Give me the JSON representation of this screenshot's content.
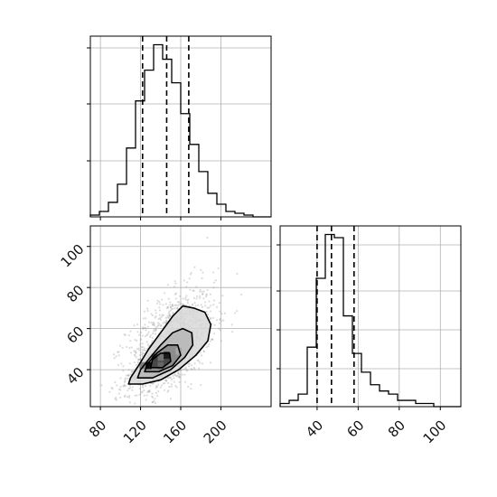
{
  "chart_data": {
    "type": "corner",
    "parameters": [
      {
        "axis_range": [
          70,
          250
        ],
        "tick_values": [
          80,
          120,
          160,
          200
        ],
        "tick_labels": [
          "80",
          "120",
          "160",
          "200"
        ],
        "quantiles": [
          122,
          146,
          168
        ],
        "histogram": {
          "bin_edges": [
            70,
            79,
            88,
            97,
            106,
            115,
            124,
            133,
            142,
            151,
            160,
            169,
            178,
            187,
            196,
            205,
            214,
            223,
            232,
            241,
            250
          ],
          "counts": [
            1,
            3,
            8,
            18,
            38,
            64,
            81,
            95,
            87,
            74,
            57,
            40,
            25,
            13,
            7,
            3,
            2,
            1,
            0,
            0
          ]
        }
      },
      {
        "axis_range": [
          22,
          110
        ],
        "tick_values": [
          40,
          60,
          80,
          100
        ],
        "tick_labels": [
          "40",
          "60",
          "80",
          "100"
        ],
        "quantiles": [
          40,
          47,
          58
        ],
        "histogram": {
          "bin_edges": [
            22,
            26.4,
            30.8,
            35.2,
            39.6,
            44,
            48.4,
            52.8,
            57.2,
            61.6,
            66,
            70.4,
            74.8,
            79.2,
            83.6,
            88,
            92.4,
            96.8,
            101.2,
            105.6,
            110
          ],
          "counts": [
            1,
            2,
            4,
            19,
            41,
            55,
            54,
            29,
            17,
            11,
            7,
            5,
            4,
            2,
            2,
            1,
            1,
            0,
            0,
            0
          ]
        }
      }
    ],
    "joint": {
      "x_range": [
        70,
        250
      ],
      "y_range": [
        22,
        110
      ],
      "x_ticks": [
        "80",
        "120",
        "160",
        "200"
      ],
      "y_ticks": [
        "40",
        "60",
        "80",
        "100"
      ],
      "contour_levels": [
        [
          [
            108,
            33
          ],
          [
            122,
            33
          ],
          [
            140,
            35
          ],
          [
            158,
            40
          ],
          [
            175,
            47
          ],
          [
            187,
            54
          ],
          [
            190,
            62
          ],
          [
            184,
            68
          ],
          [
            173,
            70
          ],
          [
            162,
            71
          ],
          [
            152,
            66
          ],
          [
            140,
            58
          ],
          [
            128,
            50
          ],
          [
            118,
            42
          ],
          [
            110,
            36
          ]
        ],
        [
          [
            117,
            36
          ],
          [
            132,
            36
          ],
          [
            150,
            40
          ],
          [
            164,
            46
          ],
          [
            172,
            52
          ],
          [
            171,
            58
          ],
          [
            162,
            60
          ],
          [
            152,
            58
          ],
          [
            140,
            52
          ],
          [
            128,
            45
          ],
          [
            120,
            40
          ]
        ],
        [
          [
            124,
            39
          ],
          [
            138,
            39
          ],
          [
            152,
            42
          ],
          [
            160,
            47
          ],
          [
            157,
            52
          ],
          [
            147,
            52
          ],
          [
            136,
            48
          ],
          [
            127,
            43
          ]
        ],
        [
          [
            130,
            41
          ],
          [
            142,
            41
          ],
          [
            150,
            44
          ],
          [
            149,
            48
          ],
          [
            140,
            48
          ],
          [
            132,
            45
          ]
        ]
      ],
      "density_cells": [
        {
          "x": 128,
          "y": 42,
          "level": 0.95
        },
        {
          "x": 134,
          "y": 46,
          "level": 0.75
        },
        {
          "x": 140,
          "y": 46,
          "level": 0.55
        },
        {
          "x": 146,
          "y": 47,
          "level": 0.9
        },
        {
          "x": 140,
          "y": 42,
          "level": 0.6
        },
        {
          "x": 122,
          "y": 42,
          "level": 0.5
        },
        {
          "x": 152,
          "y": 47,
          "level": 0.45
        },
        {
          "x": 158,
          "y": 49,
          "level": 0.35
        }
      ],
      "scatter": {
        "n": 1400,
        "mean_x": 150,
        "mean_y": 50,
        "sd_x": 22,
        "sd_y": 11,
        "correlation": 0.6
      }
    },
    "grid": true,
    "colors": {
      "line": "#000000",
      "grid": "#b0b0b0",
      "scatter": "#9a9a9a",
      "contour_fill": [
        "#d8d8d8",
        "#b8b8b8",
        "#888888",
        "#404040"
      ]
    }
  }
}
